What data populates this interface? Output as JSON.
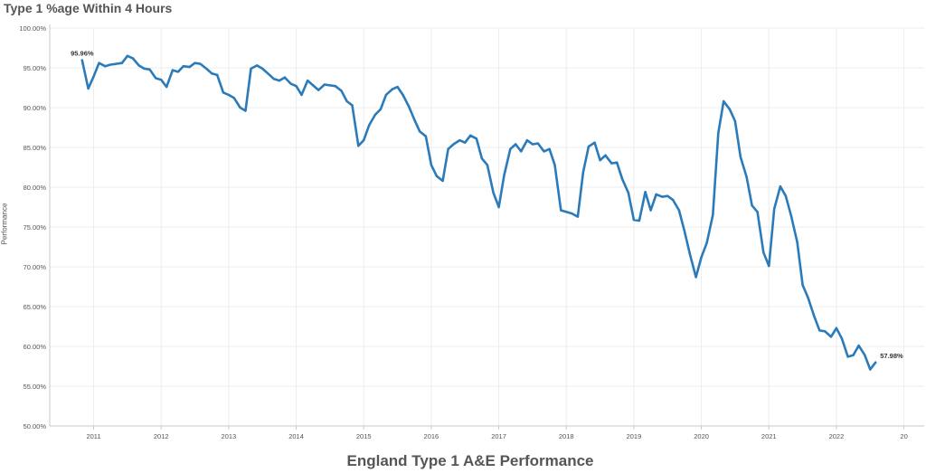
{
  "header": {
    "title": "Type 1 %age Within 4 Hours"
  },
  "footer": {
    "title": "England Type 1 A&E Performance"
  },
  "colors": {
    "line": "#2b7bba",
    "grid": "#ececec",
    "axis": "#c8c8c8"
  },
  "chart_data": {
    "type": "line",
    "title": "Type 1 %age Within 4 Hours",
    "subtitle": "England Type 1 A&E Performance",
    "xlabel": "",
    "ylabel": "Performance",
    "x_ticks": [
      "2011",
      "2012",
      "2013",
      "2014",
      "2015",
      "2016",
      "2017",
      "2018",
      "2019",
      "2020",
      "2021",
      "2022",
      "20"
    ],
    "y_ticks": [
      "100.00%",
      "95.00%",
      "90.00%",
      "85.00%",
      "80.00%",
      "75.00%",
      "70.00%",
      "65.00%",
      "60.00%",
      "55.00%",
      "50.00%"
    ],
    "ylim": [
      50,
      100
    ],
    "xlim": [
      2010.35,
      2023.3
    ],
    "grid": true,
    "data_labels": [
      {
        "x": 2010.83,
        "y": 95.96,
        "text": "95.96%"
      },
      {
        "x": 2022.58,
        "y": 57.98,
        "text": "57.98%"
      }
    ],
    "series": [
      {
        "values": [
          [
            2010.83,
            95.96
          ],
          [
            2010.92,
            92.4
          ],
          [
            2011.0,
            93.9
          ],
          [
            2011.08,
            95.6
          ],
          [
            2011.17,
            95.2
          ],
          [
            2011.25,
            95.4
          ],
          [
            2011.33,
            95.5
          ],
          [
            2011.42,
            95.6
          ],
          [
            2011.5,
            96.5
          ],
          [
            2011.58,
            96.2
          ],
          [
            2011.67,
            95.3
          ],
          [
            2011.75,
            94.9
          ],
          [
            2011.83,
            94.8
          ],
          [
            2011.92,
            93.7
          ],
          [
            2012.0,
            93.5
          ],
          [
            2012.08,
            92.6
          ],
          [
            2012.17,
            94.7
          ],
          [
            2012.25,
            94.5
          ],
          [
            2012.33,
            95.2
          ],
          [
            2012.42,
            95.1
          ],
          [
            2012.5,
            95.6
          ],
          [
            2012.58,
            95.5
          ],
          [
            2012.67,
            94.9
          ],
          [
            2012.75,
            94.3
          ],
          [
            2012.83,
            94.1
          ],
          [
            2012.92,
            91.9
          ],
          [
            2013.0,
            91.6
          ],
          [
            2013.08,
            91.2
          ],
          [
            2013.17,
            90.0
          ],
          [
            2013.25,
            89.6
          ],
          [
            2013.33,
            94.9
          ],
          [
            2013.42,
            95.3
          ],
          [
            2013.5,
            94.9
          ],
          [
            2013.58,
            94.3
          ],
          [
            2013.67,
            93.6
          ],
          [
            2013.75,
            93.4
          ],
          [
            2013.83,
            93.8
          ],
          [
            2013.92,
            93.0
          ],
          [
            2014.0,
            92.7
          ],
          [
            2014.08,
            91.6
          ],
          [
            2014.17,
            93.4
          ],
          [
            2014.25,
            92.8
          ],
          [
            2014.33,
            92.2
          ],
          [
            2014.42,
            92.9
          ],
          [
            2014.5,
            92.8
          ],
          [
            2014.58,
            92.7
          ],
          [
            2014.67,
            92.1
          ],
          [
            2014.75,
            90.8
          ],
          [
            2014.83,
            90.3
          ],
          [
            2014.92,
            85.2
          ],
          [
            2015.0,
            85.9
          ],
          [
            2015.08,
            87.8
          ],
          [
            2015.17,
            89.1
          ],
          [
            2015.25,
            89.8
          ],
          [
            2015.33,
            91.6
          ],
          [
            2015.42,
            92.3
          ],
          [
            2015.5,
            92.6
          ],
          [
            2015.58,
            91.6
          ],
          [
            2015.67,
            90.1
          ],
          [
            2015.75,
            88.5
          ],
          [
            2015.83,
            87.0
          ],
          [
            2015.92,
            86.4
          ],
          [
            2016.0,
            82.8
          ],
          [
            2016.08,
            81.4
          ],
          [
            2016.17,
            80.8
          ],
          [
            2016.25,
            84.8
          ],
          [
            2016.33,
            85.4
          ],
          [
            2016.42,
            85.9
          ],
          [
            2016.5,
            85.6
          ],
          [
            2016.58,
            86.5
          ],
          [
            2016.67,
            86.1
          ],
          [
            2016.75,
            83.6
          ],
          [
            2016.83,
            82.8
          ],
          [
            2016.92,
            79.3
          ],
          [
            2017.0,
            77.5
          ],
          [
            2017.08,
            81.5
          ],
          [
            2017.17,
            84.8
          ],
          [
            2017.25,
            85.4
          ],
          [
            2017.33,
            84.5
          ],
          [
            2017.42,
            85.9
          ],
          [
            2017.5,
            85.4
          ],
          [
            2017.58,
            85.5
          ],
          [
            2017.67,
            84.5
          ],
          [
            2017.75,
            84.8
          ],
          [
            2017.83,
            82.8
          ],
          [
            2017.92,
            77.1
          ],
          [
            2018.0,
            76.9
          ],
          [
            2018.08,
            76.7
          ],
          [
            2018.17,
            76.3
          ],
          [
            2018.25,
            81.9
          ],
          [
            2018.33,
            85.1
          ],
          [
            2018.42,
            85.6
          ],
          [
            2018.5,
            83.4
          ],
          [
            2018.58,
            84.0
          ],
          [
            2018.67,
            83.0
          ],
          [
            2018.75,
            83.1
          ],
          [
            2018.83,
            81.0
          ],
          [
            2018.92,
            79.3
          ],
          [
            2019.0,
            75.9
          ],
          [
            2019.08,
            75.8
          ],
          [
            2019.17,
            79.4
          ],
          [
            2019.25,
            77.1
          ],
          [
            2019.33,
            79.1
          ],
          [
            2019.42,
            78.8
          ],
          [
            2019.5,
            78.9
          ],
          [
            2019.58,
            78.4
          ],
          [
            2019.67,
            77.1
          ],
          [
            2019.75,
            74.5
          ],
          [
            2019.83,
            71.6
          ],
          [
            2019.92,
            68.7
          ],
          [
            2020.0,
            71.2
          ],
          [
            2020.08,
            73.0
          ],
          [
            2020.17,
            76.5
          ],
          [
            2020.25,
            86.8
          ],
          [
            2020.33,
            90.8
          ],
          [
            2020.42,
            89.8
          ],
          [
            2020.5,
            88.3
          ],
          [
            2020.58,
            83.8
          ],
          [
            2020.67,
            81.3
          ],
          [
            2020.75,
            77.7
          ],
          [
            2020.83,
            76.9
          ],
          [
            2020.92,
            71.8
          ],
          [
            2021.0,
            70.1
          ],
          [
            2021.08,
            77.3
          ],
          [
            2021.17,
            80.1
          ],
          [
            2021.25,
            78.9
          ],
          [
            2021.33,
            76.4
          ],
          [
            2021.42,
            73.1
          ],
          [
            2021.5,
            67.7
          ],
          [
            2021.58,
            66.1
          ],
          [
            2021.67,
            63.8
          ],
          [
            2021.75,
            62.0
          ],
          [
            2021.83,
            61.9
          ],
          [
            2021.92,
            61.2
          ],
          [
            2022.0,
            62.3
          ],
          [
            2022.08,
            61.0
          ],
          [
            2022.17,
            58.7
          ],
          [
            2022.25,
            58.9
          ],
          [
            2022.33,
            60.1
          ],
          [
            2022.42,
            58.9
          ],
          [
            2022.5,
            57.1
          ],
          [
            2022.58,
            57.98
          ]
        ]
      }
    ]
  }
}
